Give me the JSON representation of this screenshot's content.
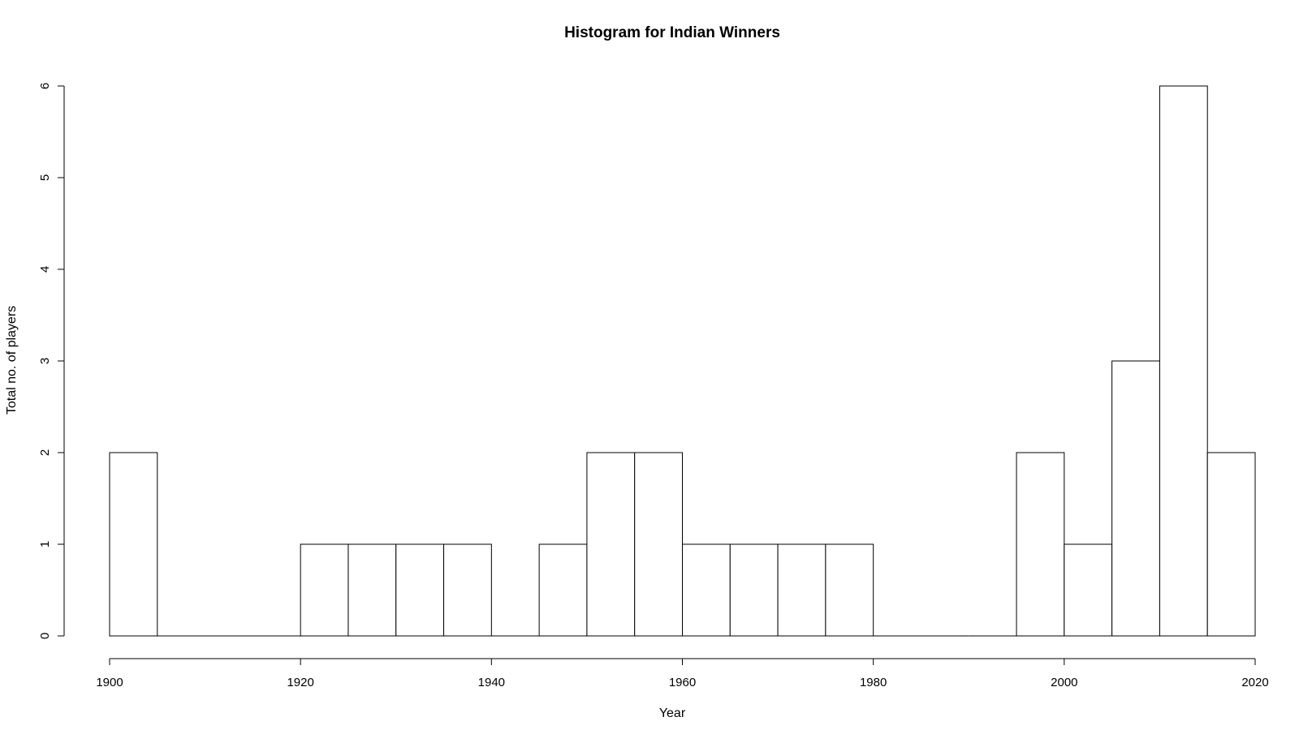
{
  "chart_data": {
    "type": "bar",
    "title": "Histogram for Indian Winners",
    "xlabel": "Year",
    "ylabel": "Total no. of players",
    "bin_width": 5,
    "bins": [
      {
        "start": 1900,
        "end": 1905,
        "count": 2
      },
      {
        "start": 1905,
        "end": 1910,
        "count": 0
      },
      {
        "start": 1910,
        "end": 1915,
        "count": 0
      },
      {
        "start": 1915,
        "end": 1920,
        "count": 0
      },
      {
        "start": 1920,
        "end": 1925,
        "count": 1
      },
      {
        "start": 1925,
        "end": 1930,
        "count": 1
      },
      {
        "start": 1930,
        "end": 1935,
        "count": 1
      },
      {
        "start": 1935,
        "end": 1940,
        "count": 1
      },
      {
        "start": 1940,
        "end": 1945,
        "count": 0
      },
      {
        "start": 1945,
        "end": 1950,
        "count": 1
      },
      {
        "start": 1950,
        "end": 1955,
        "count": 2
      },
      {
        "start": 1955,
        "end": 1960,
        "count": 2
      },
      {
        "start": 1960,
        "end": 1965,
        "count": 1
      },
      {
        "start": 1965,
        "end": 1970,
        "count": 1
      },
      {
        "start": 1970,
        "end": 1975,
        "count": 1
      },
      {
        "start": 1975,
        "end": 1980,
        "count": 1
      },
      {
        "start": 1980,
        "end": 1985,
        "count": 0
      },
      {
        "start": 1985,
        "end": 1990,
        "count": 0
      },
      {
        "start": 1990,
        "end": 1995,
        "count": 0
      },
      {
        "start": 1995,
        "end": 2000,
        "count": 2
      },
      {
        "start": 2000,
        "end": 2005,
        "count": 1
      },
      {
        "start": 2005,
        "end": 2010,
        "count": 3
      },
      {
        "start": 2010,
        "end": 2015,
        "count": 6
      },
      {
        "start": 2015,
        "end": 2020,
        "count": 2
      }
    ],
    "xlim": [
      1900,
      2020
    ],
    "ylim": [
      0,
      6
    ],
    "x_ticks": [
      1900,
      1920,
      1940,
      1960,
      1980,
      2000,
      2020
    ],
    "y_ticks": [
      0,
      1,
      2,
      3,
      4,
      5,
      6
    ],
    "grid": false,
    "legend": "none",
    "bar_fill": "#ffffff",
    "bar_stroke": "#000000"
  }
}
